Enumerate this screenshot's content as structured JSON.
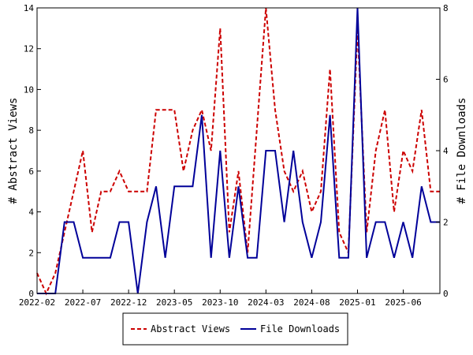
{
  "chart_data": {
    "type": "line",
    "title": "",
    "xlabel": "",
    "ylabel_left": "# Abstract Views",
    "ylabel_right": "# File Downloads",
    "x_ticks": [
      "2022-02",
      "2022-07",
      "2022-12",
      "2023-05",
      "2023-10",
      "2024-03",
      "2024-08",
      "2025-01",
      "2025-06"
    ],
    "y_left_ticks": [
      "0",
      "2",
      "4",
      "6",
      "8",
      "10",
      "12",
      "14"
    ],
    "y_right_ticks": [
      "0",
      "2",
      "4",
      "6",
      "8"
    ],
    "ylim_left": [
      0,
      14
    ],
    "ylim_right": [
      0,
      8
    ],
    "x_months": [
      "2022-02",
      "2022-03",
      "2022-04",
      "2022-05",
      "2022-06",
      "2022-07",
      "2022-08",
      "2022-09",
      "2022-10",
      "2022-11",
      "2022-12",
      "2023-01",
      "2023-02",
      "2023-03",
      "2023-04",
      "2023-05",
      "2023-06",
      "2023-07",
      "2023-08",
      "2023-09",
      "2023-10",
      "2023-11",
      "2023-12",
      "2024-01",
      "2024-02",
      "2024-03",
      "2024-04",
      "2024-05",
      "2024-06",
      "2024-07",
      "2024-08",
      "2024-09",
      "2024-10",
      "2024-11",
      "2024-12",
      "2025-01",
      "2025-02",
      "2025-03",
      "2025-04",
      "2025-05",
      "2025-06",
      "2025-07",
      "2025-08",
      "2025-09",
      "2025-10"
    ],
    "grid": false,
    "legend_position": "bottom",
    "series": [
      {
        "name": "Abstract Views",
        "axis": "left",
        "color": "#cc0000",
        "style": "dashed",
        "values": [
          1,
          0,
          1,
          3,
          5,
          7,
          3,
          5,
          5,
          6,
          5,
          5,
          5,
          9,
          9,
          9,
          6,
          8,
          9,
          7,
          13,
          3,
          6,
          2,
          8,
          14,
          9,
          6,
          5,
          6,
          4,
          5,
          11,
          3,
          2,
          13,
          3,
          7,
          9,
          4,
          7,
          6,
          9,
          5,
          5
        ]
      },
      {
        "name": "File Downloads",
        "axis": "right",
        "color": "#000099",
        "style": "solid",
        "values": [
          0,
          0,
          0,
          2,
          2,
          1,
          1,
          1,
          1,
          2,
          2,
          0,
          2,
          3,
          1,
          3,
          3,
          3,
          5,
          1,
          4,
          1,
          3,
          1,
          1,
          4,
          4,
          2,
          4,
          2,
          1,
          2,
          5,
          1,
          1,
          8,
          1,
          2,
          2,
          1,
          2,
          1,
          3,
          2,
          2
        ]
      }
    ]
  }
}
